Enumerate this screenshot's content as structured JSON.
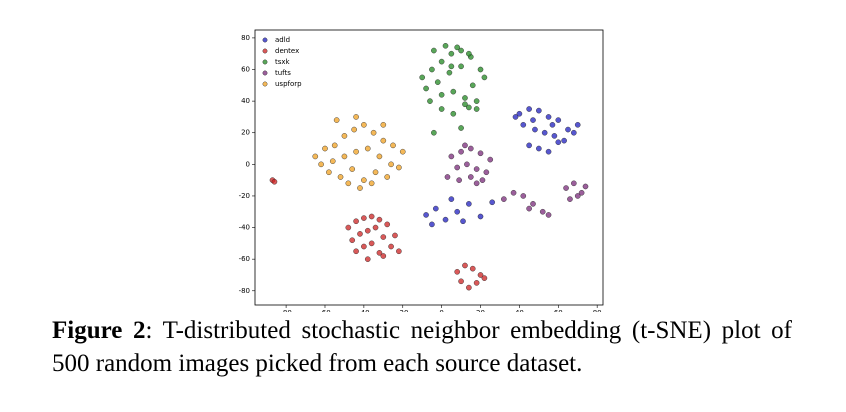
{
  "chart_data": {
    "type": "scatter",
    "xlim": [
      -96,
      83
    ],
    "ylim": [
      -89,
      85
    ],
    "xticks": [
      -80,
      -60,
      -40,
      -20,
      0,
      20,
      40,
      60,
      80
    ],
    "yticks": [
      -80,
      -60,
      -40,
      -20,
      0,
      20,
      40,
      60,
      80
    ],
    "legend": "upper-left",
    "series": [
      {
        "name": "adld",
        "color": "#1f1fbf",
        "x": [
          40,
          45,
          50,
          55,
          60,
          65,
          42,
          48,
          53,
          58,
          63,
          68,
          45,
          50,
          55,
          60,
          38,
          70,
          47,
          57,
          -8,
          -3,
          2,
          8,
          14,
          20,
          26,
          -5,
          5,
          11
        ],
        "values": [
          32,
          35,
          34,
          30,
          28,
          22,
          25,
          22,
          20,
          18,
          15,
          20,
          12,
          10,
          8,
          14,
          30,
          25,
          28,
          25,
          -32,
          -28,
          -35,
          -30,
          -25,
          -33,
          -24,
          -38,
          -22,
          -36
        ]
      },
      {
        "name": "dentex",
        "color": "#cc2222",
        "x": [
          -48,
          -44,
          -40,
          -36,
          -32,
          -28,
          -24,
          -46,
          -42,
          -38,
          -34,
          -30,
          -26,
          -44,
          -40,
          -36,
          -32,
          -22,
          -38,
          -30,
          8,
          12,
          16,
          20,
          10,
          14,
          18,
          22,
          -87,
          -86
        ],
        "values": [
          -40,
          -36,
          -34,
          -33,
          -35,
          -38,
          -45,
          -48,
          -44,
          -42,
          -40,
          -46,
          -52,
          -55,
          -52,
          -50,
          -56,
          -55,
          -60,
          -58,
          -68,
          -64,
          -66,
          -70,
          -74,
          -78,
          -75,
          -72,
          -10,
          -11
        ]
      },
      {
        "name": "tsxk",
        "color": "#228822",
        "x": [
          -10,
          -5,
          0,
          5,
          10,
          15,
          20,
          -8,
          -2,
          4,
          10,
          16,
          22,
          -6,
          0,
          6,
          12,
          18,
          -4,
          2,
          8,
          14,
          0,
          6,
          12,
          5,
          14,
          18,
          -4,
          10
        ],
        "values": [
          55,
          60,
          65,
          70,
          72,
          68,
          60,
          48,
          52,
          58,
          62,
          50,
          55,
          40,
          44,
          46,
          42,
          40,
          72,
          75,
          74,
          70,
          35,
          32,
          38,
          62,
          36,
          35,
          20,
          23
        ]
      },
      {
        "name": "tufts",
        "color": "#7a2a7a",
        "x": [
          5,
          10,
          15,
          20,
          25,
          8,
          13,
          18,
          23,
          3,
          9,
          15,
          21,
          12,
          18,
          32,
          37,
          42,
          47,
          52,
          55,
          64,
          68,
          72,
          66,
          70,
          74,
          45
        ],
        "values": [
          5,
          8,
          10,
          7,
          3,
          -2,
          0,
          -3,
          -5,
          -8,
          -10,
          -8,
          -10,
          12,
          -12,
          -22,
          -18,
          -20,
          -25,
          -30,
          -32,
          -15,
          -12,
          -18,
          -22,
          -20,
          -14,
          -28
        ]
      },
      {
        "name": "uspforp",
        "color": "#f0a020",
        "x": [
          -65,
          -60,
          -55,
          -50,
          -45,
          -40,
          -35,
          -30,
          -25,
          -20,
          -62,
          -56,
          -50,
          -44,
          -38,
          -32,
          -26,
          -58,
          -52,
          -46,
          -40,
          -34,
          -28,
          -48,
          -42,
          -36,
          -54,
          -44,
          -30,
          -22
        ],
        "values": [
          5,
          10,
          12,
          18,
          22,
          25,
          20,
          15,
          12,
          8,
          0,
          2,
          5,
          8,
          10,
          5,
          0,
          -5,
          -8,
          -3,
          -10,
          -5,
          -8,
          -12,
          -15,
          -12,
          28,
          30,
          25,
          -2
        ]
      }
    ]
  },
  "caption": {
    "label": "Figure 2",
    "text": ": T-distributed stochastic neighbor embedding (t-SNE) plot of 500 random images picked from each source dataset."
  }
}
